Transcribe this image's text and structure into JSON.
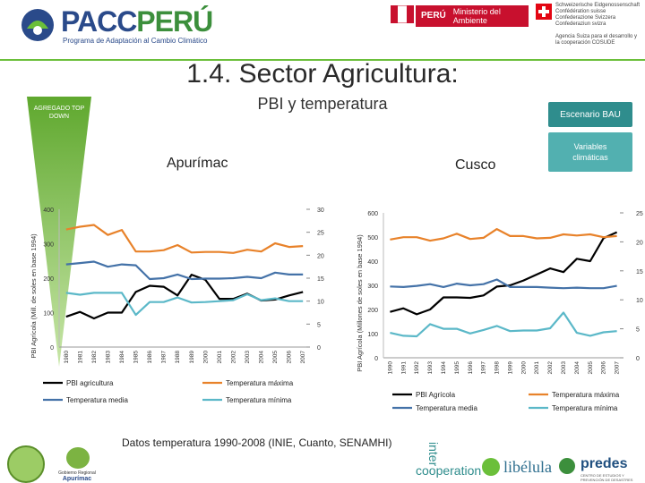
{
  "header": {
    "brand_name_1": "PACC",
    "brand_name_2": "PERÚ",
    "brand_tagline": "Programa de Adaptación al Cambio Climático",
    "peru_label": "PERÚ",
    "ministry_label": "Ministerio del Ambiente",
    "swiss_text": "Schweizerische Eidgenossenschaft Confédération suisse Confederazione Svizzera Confederaziun svizra",
    "swiss_agency": "Agencia Suiza para el desarrollo y la cooperación COSUDE"
  },
  "slide": {
    "title": "1.4. Sector Agricultura:",
    "subtitle": "PBI y temperatura",
    "triangle_label": "AGREGADO TOP DOWN",
    "btn_bau": "Escenario BAU",
    "btn_variables": "Variables climáticas",
    "footnote": "Datos temperatura 1990-2008 (INIE, Cuanto, SENAMHI)"
  },
  "colors": {
    "pbi": "#000000",
    "tmax": "#e8822a",
    "tmed": "#4472a8",
    "tmin": "#5bb8c8",
    "accent": "#2f8d8d",
    "accent_light": "#52b0b0",
    "triangle": "#7ac142"
  },
  "footer_logos": {
    "inter": "inter",
    "cooperation": "cooperation",
    "libelula": "libélula",
    "predes": "predes",
    "predes_sub": "CENTRO DE ESTUDIOS Y PREVENCIÓN DE DESASTRES",
    "apurimac_label": "Apurímac",
    "gobierno_label": "Gobierno Regional"
  },
  "chart_data": [
    {
      "type": "line",
      "title": "Apurímac",
      "ylabel": "PBI Agrícola (Mill. de soles en base 1994)",
      "ylim": [
        0,
        400
      ],
      "yticks": [
        "0",
        "100",
        "200",
        "300",
        "400"
      ],
      "y2lim": [
        0,
        30
      ],
      "y2ticks": [
        "0",
        "5",
        "10",
        "15",
        "20",
        "25",
        "30"
      ],
      "x": [
        "1980",
        "1981",
        "1982",
        "1983",
        "1984",
        "1985",
        "1986",
        "1987",
        "1988",
        "1989",
        "2000",
        "2001",
        "2002",
        "2003",
        "2004",
        "2005",
        "2006",
        "2007"
      ],
      "series": [
        {
          "name": "PBI agricultura",
          "axis": "left",
          "color_key": "pbi",
          "values": [
            88,
            102,
            83,
            100,
            100,
            160,
            178,
            175,
            150,
            210,
            195,
            140,
            140,
            155,
            135,
            138,
            150,
            160
          ]
        },
        {
          "name": "Temperatura máxima",
          "axis": "right",
          "color_key": "tmax",
          "values": [
            25.6,
            26.2,
            26.6,
            24.4,
            25.5,
            20.8,
            20.8,
            21.1,
            22.2,
            20.6,
            20.7,
            20.7,
            20.5,
            21.2,
            20.8,
            22.6,
            21.8,
            22.0
          ]
        },
        {
          "name": "Temperatura media",
          "axis": "right",
          "color_key": "tmed",
          "values": [
            18.0,
            18.3,
            18.6,
            17.5,
            18.0,
            17.8,
            14.8,
            15.0,
            15.8,
            14.8,
            14.9,
            14.9,
            15.0,
            15.3,
            15.0,
            16.2,
            15.8,
            15.8
          ]
        },
        {
          "name": "Temperatura mínima",
          "axis": "right",
          "color_key": "tmin",
          "values": [
            11.8,
            11.4,
            11.8,
            11.8,
            11.8,
            7.0,
            9.8,
            9.8,
            10.8,
            9.7,
            9.8,
            10.0,
            10.2,
            11.5,
            10.2,
            10.6,
            10.0,
            10.0
          ]
        }
      ],
      "legend": [
        "PBI agricultura",
        "Temperatura máxima",
        "Temperatura media",
        "Temperatura mínima"
      ]
    },
    {
      "type": "line",
      "title": "Cusco",
      "ylabel": "PBI Agrícola (Millones de soles en base 1994)",
      "ylim": [
        0,
        600
      ],
      "yticks": [
        "0",
        "100",
        "200",
        "300",
        "400",
        "500",
        "600"
      ],
      "y2lim": [
        0,
        25
      ],
      "y2ticks": [
        "0",
        "5",
        "10",
        "15",
        "20",
        "25"
      ],
      "x": [
        "1990",
        "1991",
        "1992",
        "1993",
        "1994",
        "1995",
        "1996",
        "1997",
        "1998",
        "1999",
        "2000",
        "2001",
        "2002",
        "2003",
        "2004",
        "2005",
        "2006",
        "2007"
      ],
      "series": [
        {
          "name": "PBI Agrícola",
          "axis": "left",
          "color_key": "pbi",
          "values": [
            190,
            205,
            180,
            200,
            250,
            250,
            248,
            258,
            295,
            300,
            320,
            345,
            370,
            355,
            410,
            400,
            495,
            520
          ]
        },
        {
          "name": "Temperatura máxima",
          "axis": "right",
          "color_key": "tmax",
          "values": [
            20.4,
            20.8,
            20.8,
            20.2,
            20.6,
            21.4,
            20.5,
            20.7,
            22.2,
            21.0,
            21.0,
            20.6,
            20.7,
            21.3,
            21.1,
            21.3,
            20.8,
            21.0
          ]
        },
        {
          "name": "Temperatura media",
          "axis": "right",
          "color_key": "tmed",
          "values": [
            12.3,
            12.2,
            12.4,
            12.7,
            12.2,
            12.8,
            12.5,
            12.7,
            13.5,
            12.2,
            12.2,
            12.2,
            12.1,
            12.0,
            12.1,
            12.0,
            12.0,
            12.4
          ]
        },
        {
          "name": "Temperatura mínima",
          "axis": "right",
          "color_key": "tmin",
          "values": [
            4.3,
            3.8,
            3.7,
            5.8,
            5.0,
            5.0,
            4.2,
            4.8,
            5.5,
            4.6,
            4.7,
            4.7,
            5.1,
            7.8,
            4.3,
            3.8,
            4.4,
            4.6
          ]
        }
      ],
      "legend": [
        "PBI Agrícola",
        "Temperatura máxima",
        "Temperatura media",
        "Temperatura mínima"
      ]
    }
  ]
}
